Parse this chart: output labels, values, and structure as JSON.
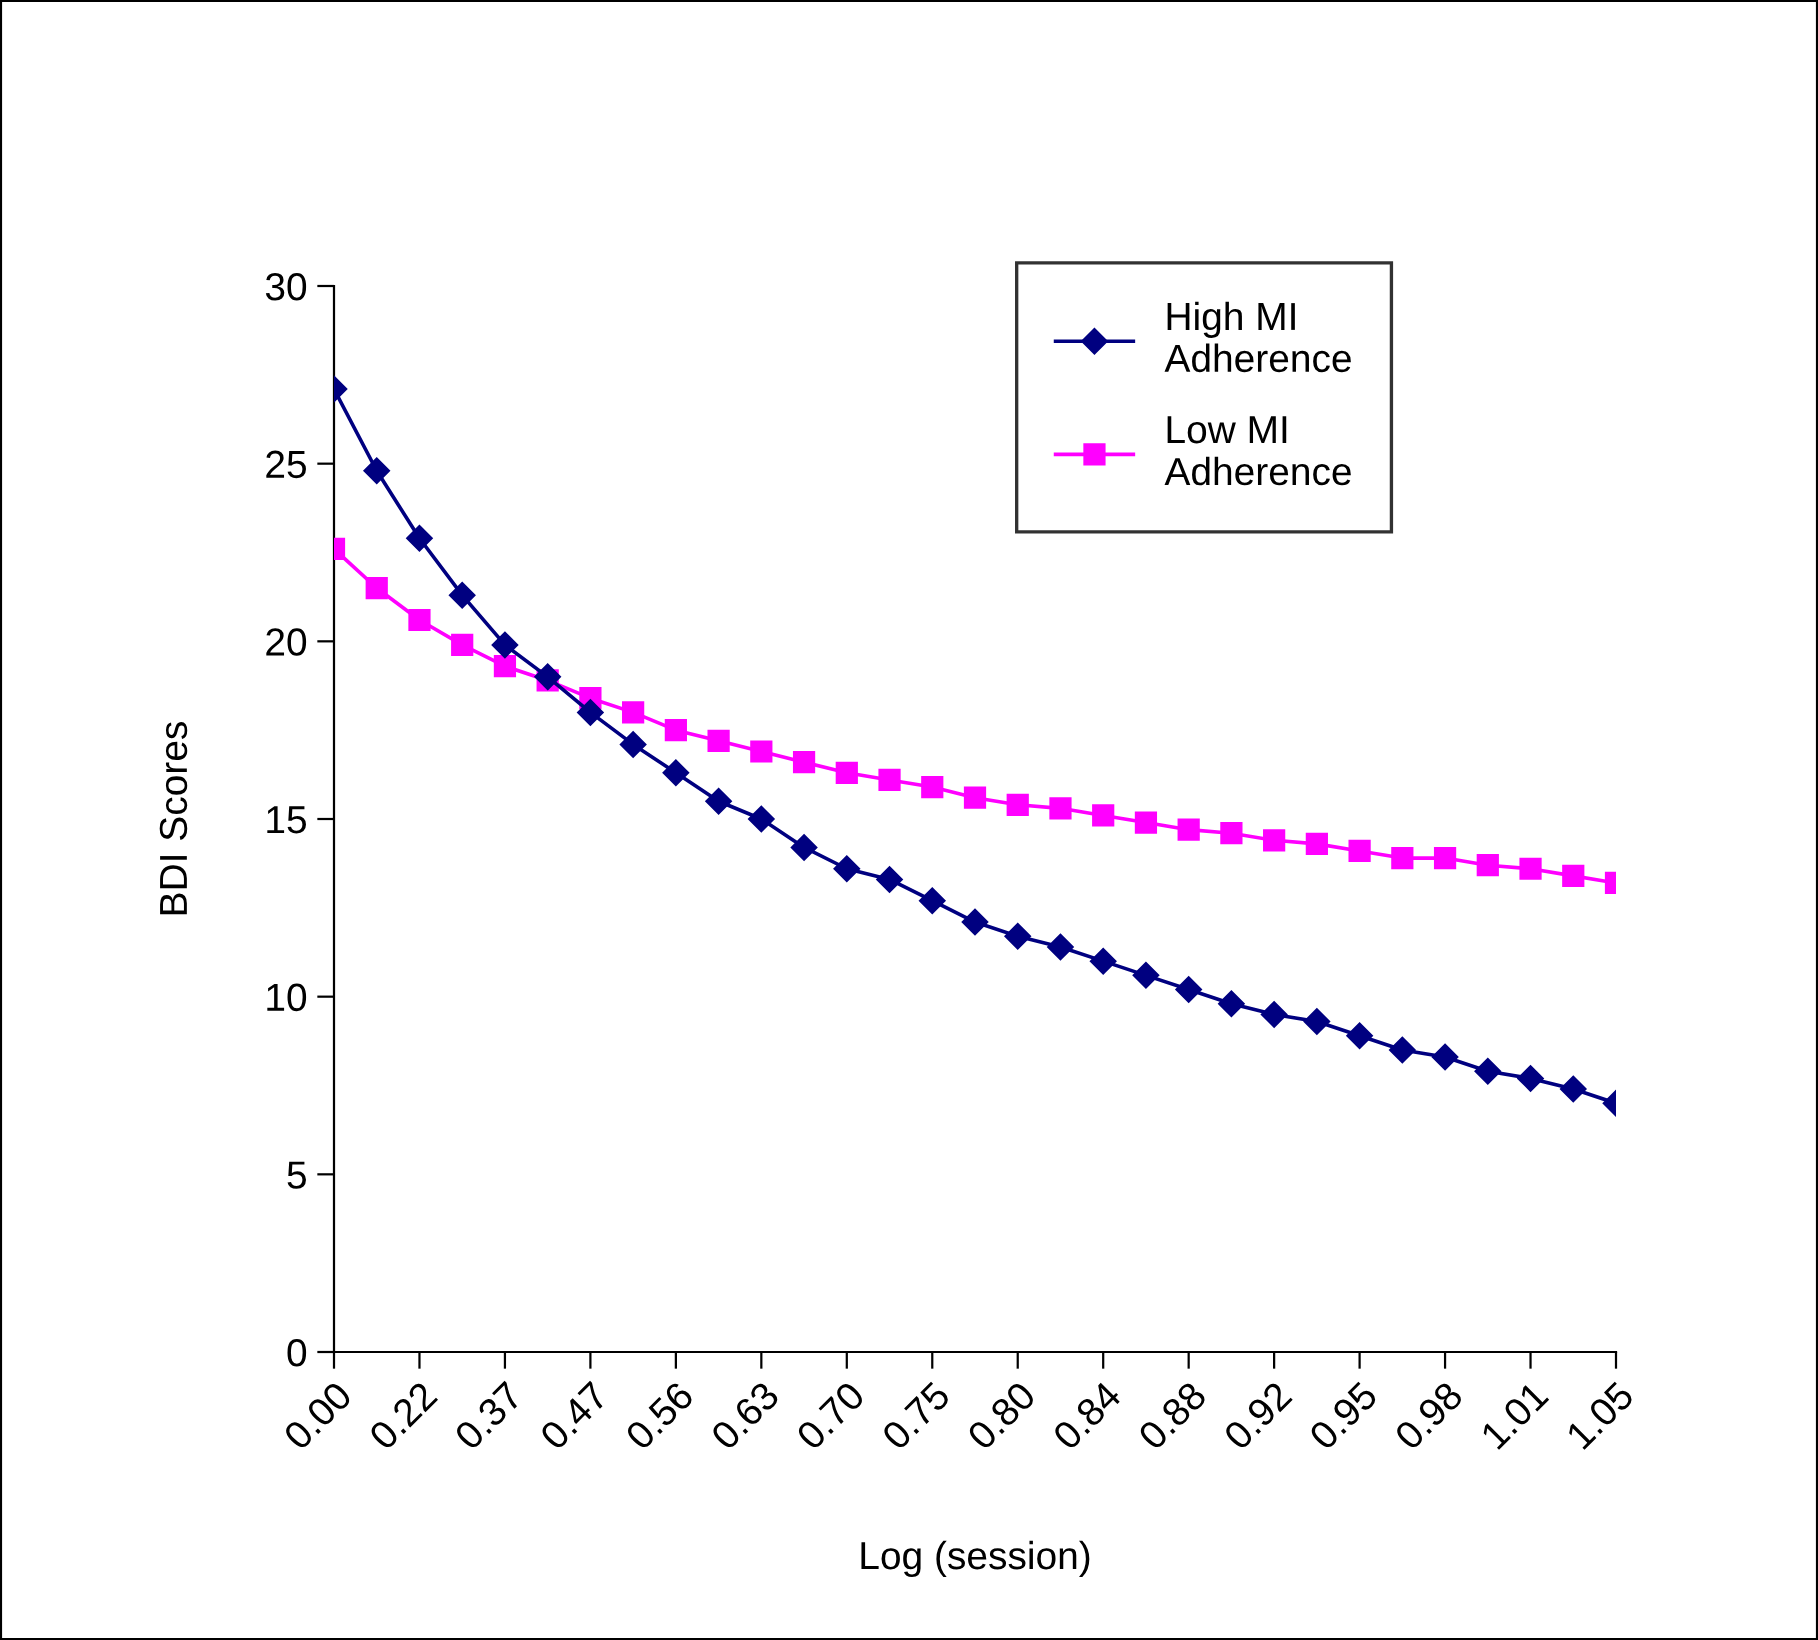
{
  "chart_data": {
    "type": "line",
    "xlabel": "Log (session)",
    "ylabel": "BDI Scores",
    "categories": [
      "0.00",
      null,
      "0.22",
      null,
      "0.37",
      null,
      "0.47",
      null,
      "0.56",
      null,
      "0.63",
      null,
      "0.70",
      null,
      "0.75",
      null,
      "0.80",
      null,
      "0.84",
      null,
      "0.88",
      null,
      "0.92",
      null,
      "0.95",
      null,
      "0.98",
      null,
      "1.01",
      null,
      "1.05"
    ],
    "series": [
      {
        "name": "High MI\nAdherence",
        "color": "#000080",
        "marker": "diamond",
        "values": [
          27.1,
          24.8,
          22.9,
          21.3,
          19.9,
          19.0,
          18.0,
          17.1,
          16.3,
          15.5,
          15.0,
          14.2,
          13.6,
          13.3,
          12.7,
          12.1,
          11.7,
          11.4,
          11.0,
          10.6,
          10.2,
          9.8,
          9.5,
          9.3,
          8.9,
          8.5,
          8.3,
          7.9,
          7.7,
          7.4,
          7.0
        ]
      },
      {
        "name": "Low MI\nAdherence",
        "color": "#ff00ff",
        "marker": "square",
        "values": [
          22.6,
          21.5,
          20.6,
          19.9,
          19.3,
          18.9,
          18.4,
          18.0,
          17.5,
          17.2,
          16.9,
          16.6,
          16.3,
          16.1,
          15.9,
          15.6,
          15.4,
          15.3,
          15.1,
          14.9,
          14.7,
          14.6,
          14.4,
          14.3,
          14.1,
          13.9,
          13.9,
          13.7,
          13.6,
          13.4,
          13.2
        ]
      }
    ],
    "ylim": [
      0,
      30
    ],
    "yticks": [
      0,
      5,
      10,
      15,
      20,
      25,
      30
    ],
    "grid": false,
    "legend": "top right",
    "line_style": "solid"
  }
}
